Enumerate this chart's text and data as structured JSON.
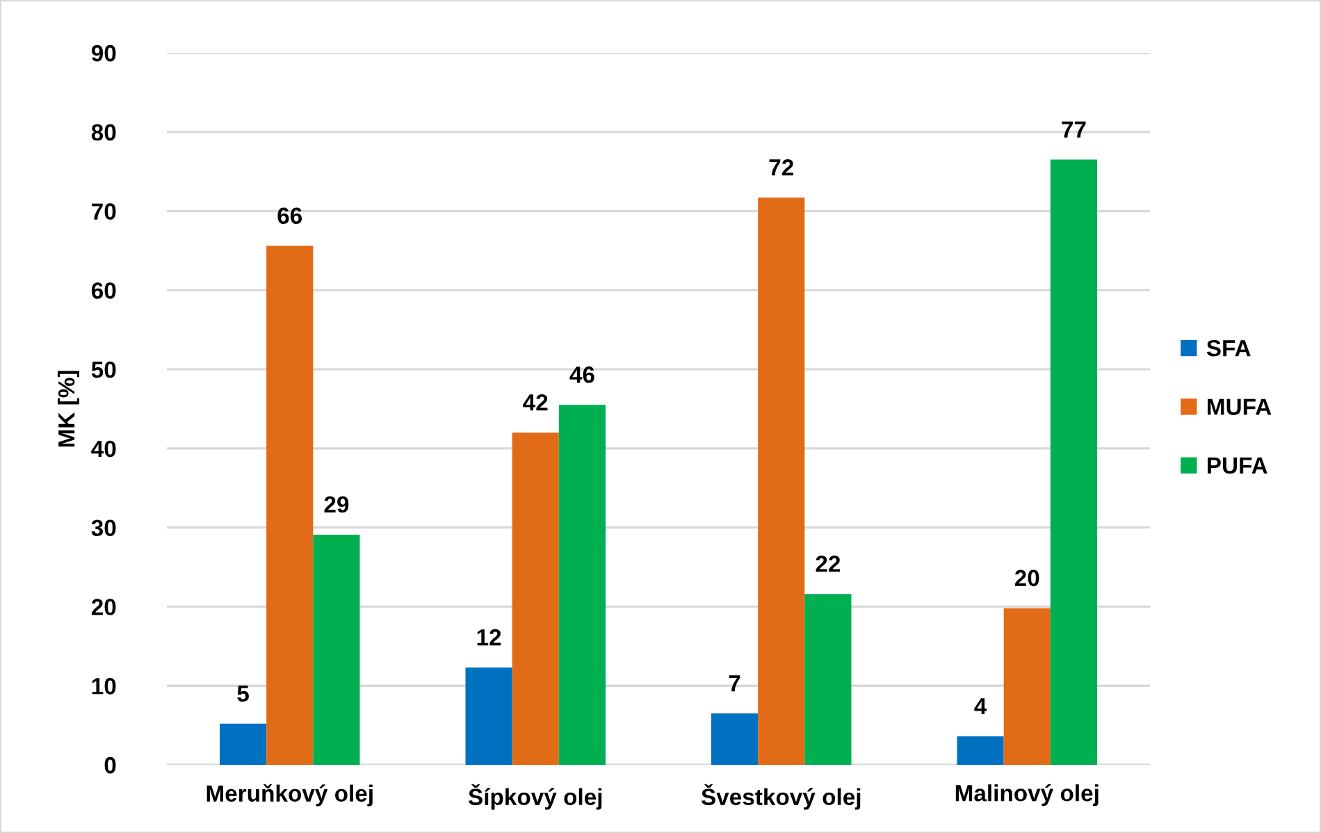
{
  "chart_data": {
    "type": "bar",
    "ylabel": "MK [%]",
    "categories": [
      "Meruňkový olej",
      "Šípkový olej",
      "Švestkový olej",
      "Malinový olej"
    ],
    "series": [
      {
        "name": "SFA",
        "color": "#0070c0",
        "values": [
          5.2,
          12.3,
          6.5,
          3.6
        ],
        "value_labels": [
          "5",
          "12",
          "7",
          "4"
        ]
      },
      {
        "name": "MUFA",
        "color": "#e26b17",
        "values": [
          65.6,
          42.0,
          71.7,
          19.8
        ],
        "value_labels": [
          "66",
          "42",
          "72",
          "20"
        ]
      },
      {
        "name": "PUFA",
        "color": "#00b050",
        "values": [
          29.1,
          45.5,
          21.6,
          76.5
        ],
        "value_labels": [
          "29",
          "46",
          "22",
          "77"
        ]
      }
    ],
    "ylim": [
      0,
      90
    ],
    "yticks": [
      0,
      10,
      20,
      30,
      40,
      50,
      60,
      70,
      80,
      90
    ],
    "grid": "y",
    "legend": "right"
  }
}
